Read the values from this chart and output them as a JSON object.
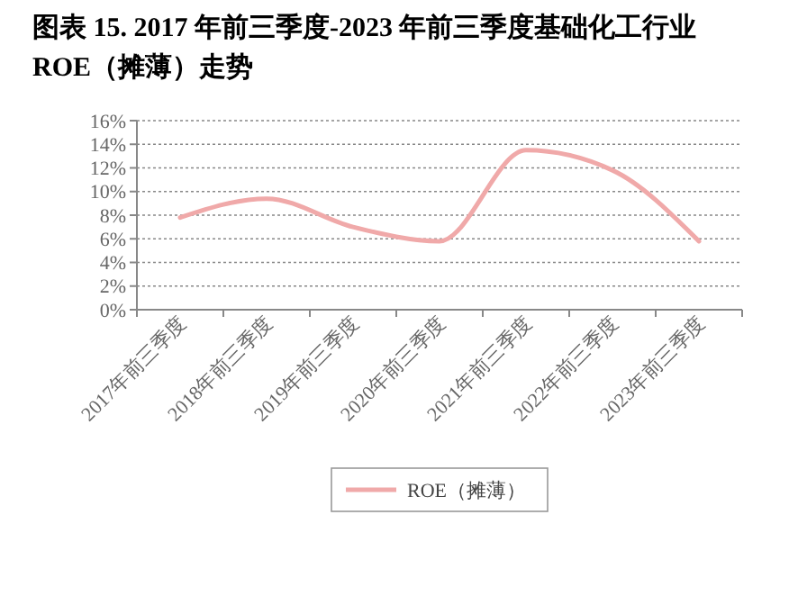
{
  "chart_data": {
    "type": "line",
    "title": "图表 15. 2017 年前三季度-2023 年前三季度基础化工行业 ROE（摊薄）走势",
    "categories": [
      "2017年前三季度",
      "2018年前三季度",
      "2019年前三季度",
      "2020年前三季度",
      "2021年前三季度",
      "2022年前三季度",
      "2023年前三季度"
    ],
    "series": [
      {
        "name": "ROE（摊薄）",
        "color": "#f0a9a9",
        "values": [
          7.8,
          9.4,
          7.0,
          5.8,
          13.5,
          11.8,
          5.8
        ]
      }
    ],
    "ylim": [
      0,
      16
    ],
    "yticks": [
      {
        "value": 0,
        "label": "0%"
      },
      {
        "value": 2,
        "label": "2%"
      },
      {
        "value": 4,
        "label": "4%"
      },
      {
        "value": 6,
        "label": "6%"
      },
      {
        "value": 8,
        "label": "8%"
      },
      {
        "value": 10,
        "label": "10%"
      },
      {
        "value": 12,
        "label": "12%"
      },
      {
        "value": 14,
        "label": "14%"
      },
      {
        "value": 16,
        "label": "16%"
      }
    ],
    "grid": "y",
    "legend": "bottom",
    "marker": "none",
    "line_style": "solid"
  }
}
